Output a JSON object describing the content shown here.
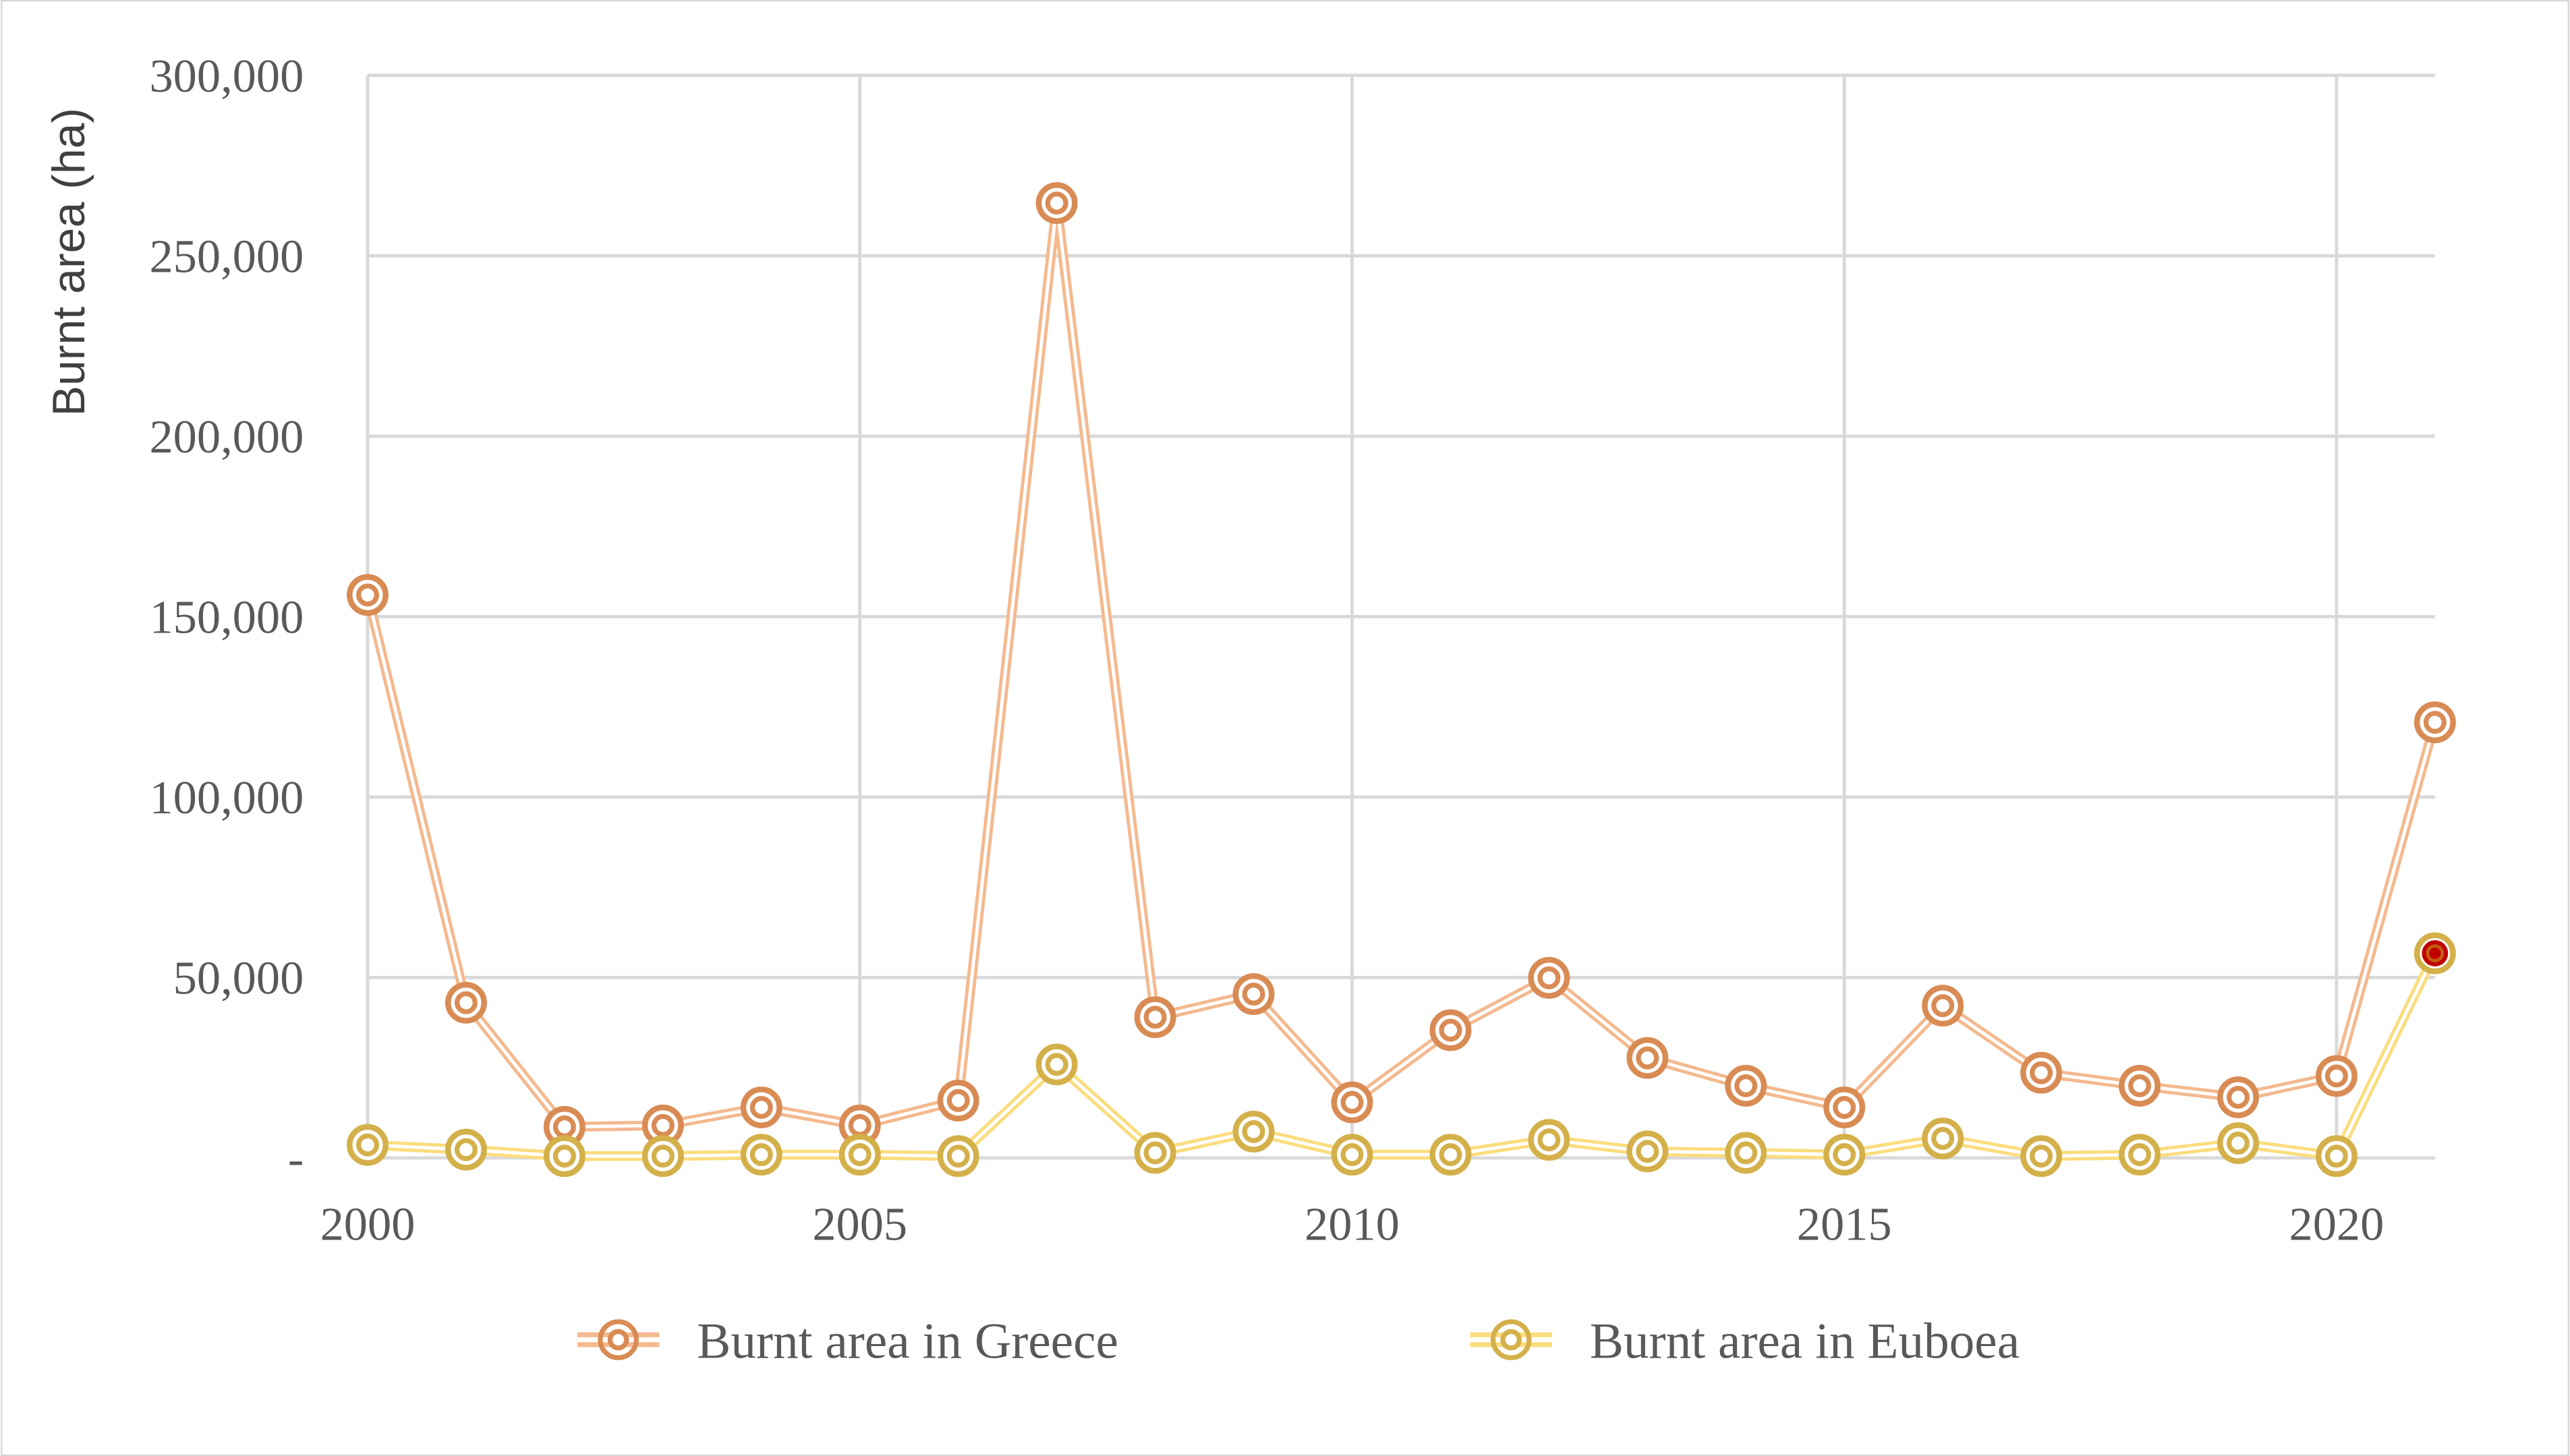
{
  "chart_data": {
    "type": "line",
    "title": "",
    "xlabel": "",
    "ylabel": "Burnt area (ha)",
    "x": [
      2000,
      2001,
      2002,
      2003,
      2004,
      2005,
      2006,
      2007,
      2008,
      2009,
      2010,
      2011,
      2012,
      2013,
      2014,
      2015,
      2016,
      2017,
      2018,
      2019,
      2020,
      2021
    ],
    "xlim": [
      2000,
      2021
    ],
    "ylim": [
      0,
      300000
    ],
    "x_ticks": [
      "2000",
      "2005",
      "2010",
      "2015",
      "2020"
    ],
    "y_ticks": [
      "-",
      "50,000",
      "100,000",
      "150,000",
      "200,000",
      "250,000",
      "300,000"
    ],
    "grid": true,
    "legend_position": "bottom",
    "series": [
      {
        "name": "Burnt area in Greece",
        "color": "#D98B54",
        "line_color": "#F4B98F",
        "values": [
          156000,
          43000,
          8600,
          9000,
          14000,
          9000,
          15900,
          264600,
          39000,
          45400,
          15400,
          35400,
          49900,
          27700,
          20000,
          14000,
          42200,
          23600,
          20000,
          16800,
          22700,
          120700
        ]
      },
      {
        "name": "Burnt area in Euboea",
        "color": "#D4B04A",
        "line_color": "#FBDD7E",
        "values": [
          3600,
          2300,
          500,
          500,
          900,
          900,
          500,
          25900,
          1400,
          7300,
          900,
          900,
          5000,
          1800,
          1400,
          900,
          5400,
          500,
          900,
          4100,
          500,
          56700
        ]
      }
    ],
    "highlight": {
      "series": 1,
      "x": 2021,
      "color": "#C00000"
    }
  }
}
